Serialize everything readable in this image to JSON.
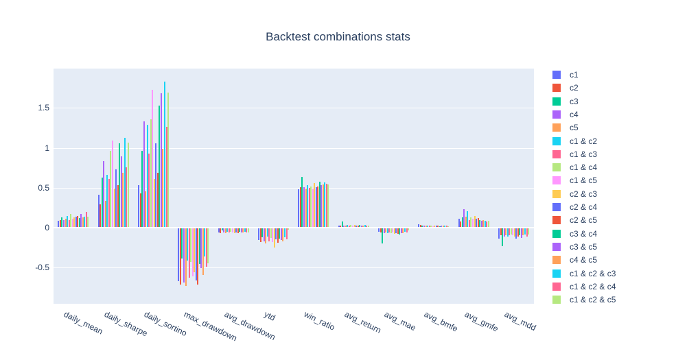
{
  "chart_data": {
    "type": "bar",
    "title": "Backtest combinations stats",
    "xlabel": "",
    "ylabel": "",
    "ylim": [
      -0.95,
      2.0
    ],
    "grid": true,
    "legend_position": "right",
    "plot_bg_color": "#E5ECF6",
    "grid_color": "#ffffff",
    "font_color": "#2a3f5f",
    "yticks": [
      {
        "label": "-0.5",
        "value": -0.5
      },
      {
        "label": "0",
        "value": 0
      },
      {
        "label": "0.5",
        "value": 0.5
      },
      {
        "label": "1",
        "value": 1
      },
      {
        "label": "1.5",
        "value": 1.5
      }
    ],
    "palette": [
      "#636EFA",
      "#EF553B",
      "#00CC96",
      "#AB63FA",
      "#FFA15A",
      "#19D3F3",
      "#FF6692",
      "#B6E880",
      "#FF97FF",
      "#FECB52"
    ],
    "categories": [
      "daily_mean",
      "daily_sharpe",
      "daily_sortino",
      "max_drawdown",
      "avg_drawdown",
      "ytd",
      "win_ratio",
      "avg_return",
      "avg_mae",
      "avg_bmfe",
      "avg_gmfe",
      "avg_mdd"
    ],
    "series": [
      {
        "name": "c1",
        "values": [
          0.08,
          0.4,
          0.52,
          -0.66,
          -0.05,
          -0.15,
          0.47,
          0.02,
          -0.04,
          0.035,
          0.1,
          -0.13
        ]
      },
      {
        "name": "c2",
        "values": [
          0.09,
          0.28,
          0.42,
          -0.7,
          -0.06,
          -0.17,
          0.5,
          0.015,
          -0.05,
          0.03,
          0.07,
          -0.09
        ]
      },
      {
        "name": "c3",
        "values": [
          0.12,
          0.62,
          0.95,
          -0.38,
          -0.03,
          -0.11,
          0.63,
          0.065,
          -0.19,
          0.02,
          0.12,
          -0.22
        ]
      },
      {
        "name": "c4",
        "values": [
          0.09,
          0.82,
          1.32,
          -0.68,
          -0.05,
          -0.16,
          0.5,
          0.02,
          -0.06,
          0.02,
          0.22,
          -0.1
        ]
      },
      {
        "name": "c5",
        "values": [
          0.1,
          0.33,
          0.45,
          -0.72,
          -0.06,
          -0.19,
          0.48,
          0.015,
          -0.05,
          0.015,
          0.13,
          -0.09
        ]
      },
      {
        "name": "c1 & c2",
        "values": [
          0.14,
          0.65,
          1.28,
          -0.4,
          -0.04,
          -0.1,
          0.52,
          0.025,
          -0.06,
          0.02,
          0.2,
          -0.1
        ]
      },
      {
        "name": "c1 & c3",
        "values": [
          0.09,
          0.6,
          0.92,
          -0.62,
          -0.05,
          -0.16,
          0.49,
          0.02,
          -0.05,
          0.015,
          0.09,
          -0.09
        ]
      },
      {
        "name": "c1 & c4",
        "values": [
          0.16,
          0.95,
          1.35,
          -0.42,
          -0.04,
          -0.12,
          0.51,
          0.025,
          -0.06,
          0.015,
          0.12,
          -0.08
        ]
      },
      {
        "name": "c1 & c5",
        "values": [
          0.1,
          1.08,
          1.72,
          -0.6,
          -0.05,
          -0.17,
          0.48,
          0.015,
          -0.05,
          0.01,
          0.1,
          -0.09
        ]
      },
      {
        "name": "c2 & c3",
        "values": [
          0.12,
          0.48,
          0.6,
          -0.55,
          -0.06,
          -0.24,
          0.55,
          0.03,
          -0.07,
          0.02,
          0.14,
          -0.1
        ]
      },
      {
        "name": "c2 & c4",
        "values": [
          0.13,
          0.72,
          1.05,
          -0.65,
          -0.05,
          -0.14,
          0.5,
          0.02,
          -0.06,
          0.015,
          0.1,
          -0.13
        ]
      },
      {
        "name": "c2 & c5",
        "values": [
          0.14,
          0.52,
          0.68,
          -0.7,
          -0.06,
          -0.18,
          0.51,
          0.02,
          -0.07,
          0.02,
          0.11,
          -0.1
        ]
      },
      {
        "name": "c3 & c4",
        "values": [
          0.11,
          1.05,
          1.52,
          -0.45,
          -0.04,
          -0.13,
          0.57,
          0.03,
          -0.08,
          0.01,
          0.09,
          -0.09
        ]
      },
      {
        "name": "c3 & c5",
        "values": [
          0.16,
          0.88,
          1.67,
          -0.5,
          -0.05,
          -0.15,
          0.52,
          0.02,
          -0.06,
          0.015,
          0.08,
          -0.12
        ]
      },
      {
        "name": "c4 & c5",
        "values": [
          0.12,
          0.68,
          0.98,
          -0.58,
          -0.05,
          -0.16,
          0.53,
          0.02,
          -0.06,
          0.015,
          0.09,
          -0.09
        ]
      },
      {
        "name": "c1 & c2 & c3",
        "values": [
          0.13,
          1.12,
          1.82,
          -0.35,
          -0.04,
          -0.11,
          0.56,
          0.025,
          -0.04,
          0.02,
          0.08,
          -0.08
        ]
      },
      {
        "name": "c1 & c2 & c4",
        "values": [
          0.19,
          0.75,
          1.25,
          -0.48,
          -0.05,
          -0.14,
          0.54,
          0.02,
          -0.05,
          0.015,
          0.07,
          -0.1
        ]
      },
      {
        "name": "c1 & c2 & c5",
        "values": [
          0.13,
          1.06,
          1.68,
          -0.44,
          -0.05,
          -0.02,
          0.53,
          0.015,
          -0.03,
          0.01,
          0.08,
          -0.08
        ]
      }
    ]
  }
}
